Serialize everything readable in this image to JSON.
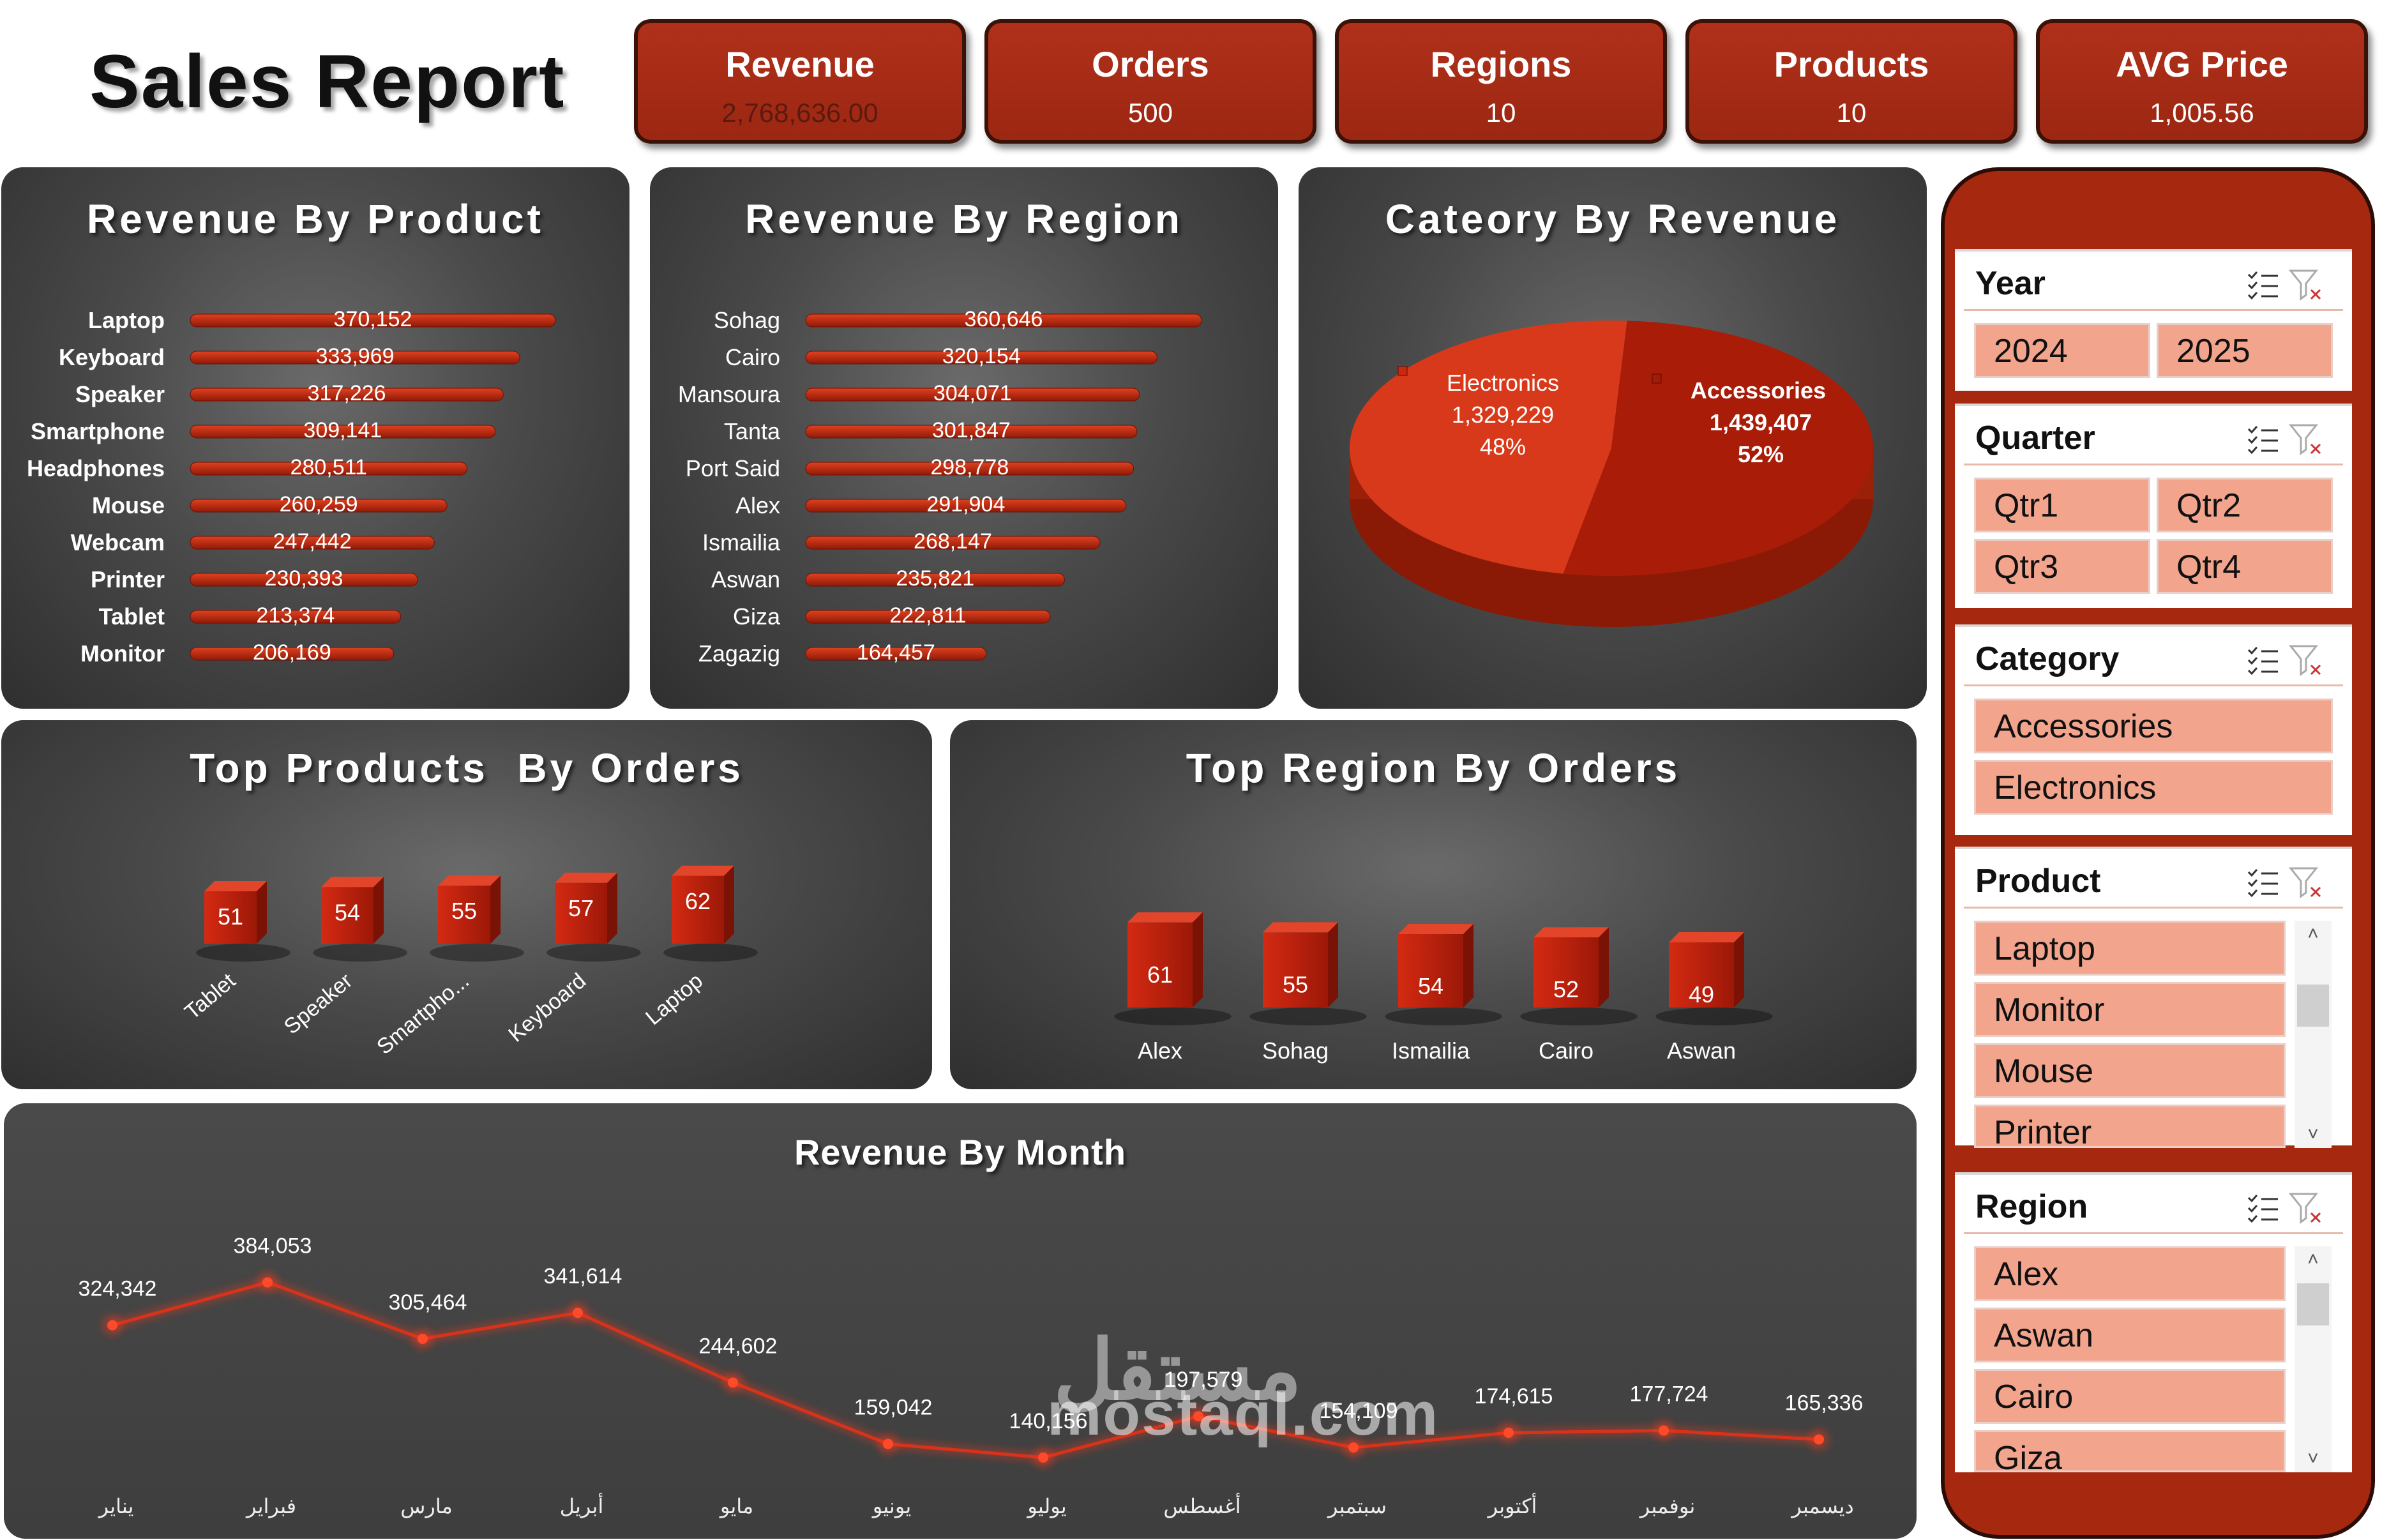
{
  "title": "Sales Report",
  "kpis": [
    {
      "label": "Revenue",
      "value": "2,768,636.00"
    },
    {
      "label": "Orders",
      "value": "500"
    },
    {
      "label": "Regions",
      "value": "10"
    },
    {
      "label": "Products",
      "value": "10"
    },
    {
      "label": "AVG Price",
      "value": "1,005.56"
    }
  ],
  "colors": {
    "accent": "#a6280f",
    "bar": "#c0240c",
    "chip": "#f2a48d",
    "panel": "#4a4a4a"
  },
  "chart_data": [
    {
      "type": "bar",
      "title": "Revenue By Product",
      "orientation": "horizontal",
      "categories": [
        "Laptop",
        "Keyboard",
        "Speaker",
        "Smartphone",
        "Headphones",
        "Mouse",
        "Webcam",
        "Printer",
        "Tablet",
        "Monitor"
      ],
      "values": [
        370152,
        333969,
        317226,
        309141,
        280511,
        260259,
        247442,
        230393,
        213374,
        206169
      ],
      "labels": [
        "370,152",
        "333,969",
        "317,226",
        "309,141",
        "280,511",
        "260,259",
        "247,442",
        "230,393",
        "213,374",
        "206,169"
      ]
    },
    {
      "type": "bar",
      "title": "Revenue By Region",
      "orientation": "horizontal",
      "categories": [
        "Sohag",
        "Cairo",
        "Mansoura",
        "Tanta",
        "Port Said",
        "Alex",
        "Ismailia",
        "Aswan",
        "Giza",
        "Zagazig"
      ],
      "values": [
        360646,
        320154,
        304071,
        301847,
        298778,
        291904,
        268147,
        235821,
        222811,
        164457
      ],
      "labels": [
        "360,646",
        "320,154",
        "304,071",
        "301,847",
        "298,778",
        "291,904",
        "268,147",
        "235,821",
        "222,811",
        "164,457"
      ]
    },
    {
      "type": "pie",
      "title": "Cateory By Revenue",
      "slices": [
        {
          "name": "Electronics",
          "value": 1329229,
          "label": "1,329,229",
          "pct": "48%"
        },
        {
          "name": "Accessories",
          "value": 1439407,
          "label": "1,439,407",
          "pct": "52%"
        }
      ]
    },
    {
      "type": "bar",
      "title": "Top Products  By Orders",
      "categories": [
        "Tablet",
        "Speaker",
        "Smartpho...",
        "Keyboard",
        "Laptop"
      ],
      "values": [
        51,
        54,
        55,
        57,
        62
      ]
    },
    {
      "type": "bar",
      "title": "Top Region By Orders",
      "categories": [
        "Alex",
        "Sohag",
        "Ismailia",
        "Cairo",
        "Aswan"
      ],
      "values": [
        61,
        55,
        54,
        52,
        49
      ]
    },
    {
      "type": "line",
      "title": "Revenue By Month",
      "categories": [
        "يناير",
        "فبراير",
        "مارس",
        "أبريل",
        "مايو",
        "يونيو",
        "يوليو",
        "أغسطس",
        "سبتمبر",
        "أكتوبر",
        "نوفمبر",
        "ديسمبر"
      ],
      "values": [
        324342,
        384053,
        305464,
        341614,
        244602,
        159042,
        140156,
        197579,
        154109,
        174615,
        177724,
        165336
      ],
      "labels": [
        "324,342",
        "384,053",
        "305,464",
        "341,614",
        "244,602",
        "159,042",
        "140,156",
        "197,579",
        "154,109",
        "174,615",
        "177,724",
        "165,336"
      ]
    }
  ],
  "slicers": {
    "year": {
      "label": "Year",
      "items": [
        "2024",
        "2025"
      ]
    },
    "quarter": {
      "label": "Quarter",
      "items": [
        "Qtr1",
        "Qtr2",
        "Qtr3",
        "Qtr4"
      ]
    },
    "category": {
      "label": "Category",
      "items": [
        "Accessories",
        "Electronics"
      ]
    },
    "product": {
      "label": "Product",
      "items": [
        "Laptop",
        "Monitor",
        "Mouse",
        "Printer"
      ]
    },
    "region": {
      "label": "Region",
      "items": [
        "Alex",
        "Aswan",
        "Cairo",
        "Giza"
      ]
    }
  },
  "watermark": {
    "logo": "مستقل",
    "site": "mostaql.com"
  }
}
